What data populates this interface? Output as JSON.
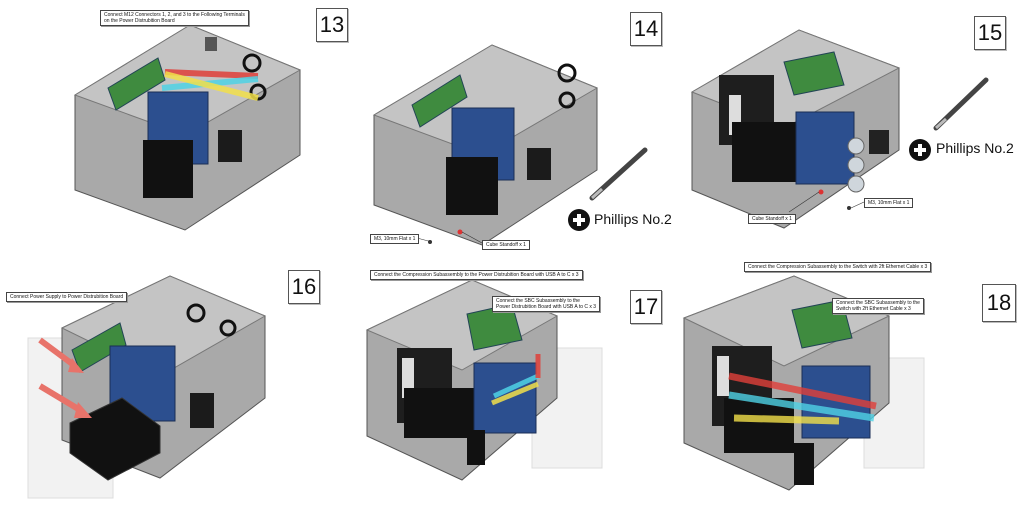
{
  "steps": [
    {
      "number": "13",
      "notes": [
        "Connect M12 Connectors 1, 2, and 3 to the Following Terminals\non the Power Distrubition Board"
      ]
    },
    {
      "number": "14",
      "notes": [],
      "callouts": [
        "M3, 10mm Flat x 1",
        "Cube Standoff x 1"
      ],
      "tool": "Phillips No.2"
    },
    {
      "number": "15",
      "notes": [],
      "callouts": [
        "M3, 10mm Flat x 1",
        "Cube Standoff x 1"
      ],
      "tool": "Phillips No.2"
    },
    {
      "number": "16",
      "notes": [
        "Connect Power Supply to Power Distrubition Board"
      ]
    },
    {
      "number": "17",
      "notes": [
        "Connect the Compression Subassembly to the Power Distrubition Board with USB A to C x 3",
        "Connect the SBC Subassembly to the\nPower Distrubition Board with USB A to C x 3"
      ]
    },
    {
      "number": "18",
      "notes": [
        "Connect the Compression Subassembly to the Switch with 2ft Ethernet Cable x 3",
        "Connect the SBC Subassembly to the\nSwitch with 2ft Ethernet Cable x 3"
      ]
    }
  ],
  "colors": {
    "red": "#e0403a",
    "cyan": "#4fd3e6",
    "yellow": "#f2e04a",
    "arrow": "#e8736a",
    "box": "#b9b9b9",
    "board": "#2f5a9e",
    "pcb": "#3a8a3a",
    "psu": "#141414"
  }
}
